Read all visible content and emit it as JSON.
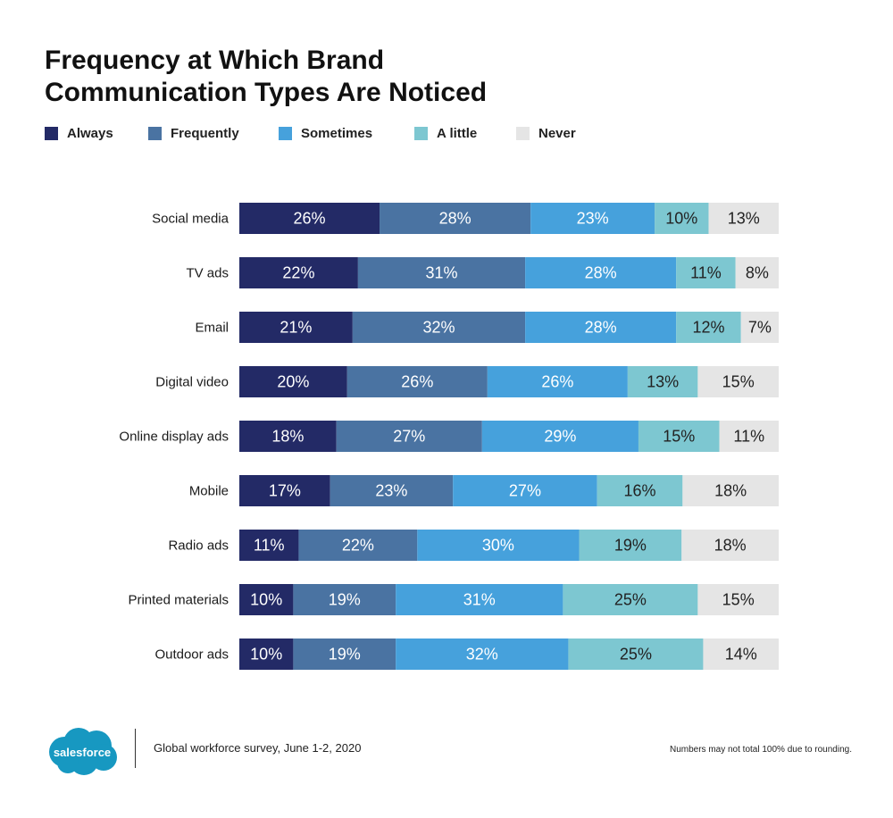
{
  "title_line1": "Frequency at Which Brand",
  "title_line2": "Communication Types Are Noticed",
  "legend": [
    {
      "label": "Always",
      "color": "#232a66"
    },
    {
      "label": "Frequently",
      "color": "#4a73a2"
    },
    {
      "label": "Sometimes",
      "color": "#46a1dc"
    },
    {
      "label": "A little",
      "color": "#7dc7d1"
    },
    {
      "label": "Never",
      "color": "#e5e5e5"
    }
  ],
  "chart_data": {
    "type": "bar",
    "orientation": "horizontal",
    "stacked": true,
    "title": "Frequency at Which Brand Communication Types Are Noticed",
    "unit": "%",
    "categories": [
      "Social media",
      "TV ads",
      "Email",
      "Digital video",
      "Online display ads",
      "Mobile",
      "Radio ads",
      "Printed materials",
      "Outdoor ads"
    ],
    "series": [
      {
        "name": "Always",
        "color": "#232a66",
        "values": [
          26,
          22,
          21,
          20,
          18,
          17,
          11,
          10,
          10
        ]
      },
      {
        "name": "Frequently",
        "color": "#4a73a2",
        "values": [
          28,
          31,
          32,
          26,
          27,
          23,
          22,
          19,
          19
        ]
      },
      {
        "name": "Sometimes",
        "color": "#46a1dc",
        "values": [
          23,
          28,
          28,
          26,
          29,
          27,
          30,
          31,
          32
        ]
      },
      {
        "name": "A little",
        "color": "#7dc7d1",
        "values": [
          10,
          11,
          12,
          13,
          15,
          16,
          19,
          25,
          25
        ]
      },
      {
        "name": "Never",
        "color": "#e5e5e5",
        "values": [
          13,
          8,
          7,
          15,
          11,
          18,
          18,
          15,
          14
        ]
      }
    ],
    "legend_position": "top-left",
    "grid": false
  },
  "footer": {
    "logo_text": "salesforce",
    "logo_color": "#1798c1",
    "source": "Global workforce survey, June 1-2, 2020",
    "note": "Numbers may not total 100% due to rounding."
  }
}
